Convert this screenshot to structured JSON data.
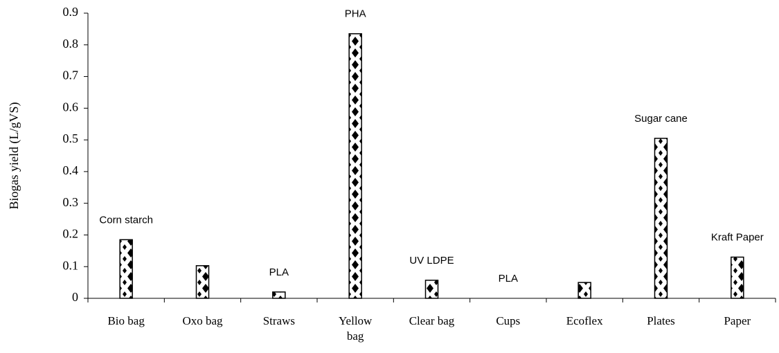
{
  "chart_data": {
    "type": "bar",
    "y_label": "Biogas yield (L/gVS)",
    "categories": [
      "Bio bag",
      "Oxo bag",
      "Straws",
      "Yellow bag",
      "Clear bag",
      "Cups",
      "Ecoflex",
      "Plates",
      "Paper"
    ],
    "values": [
      0.185,
      0.103,
      0.02,
      0.835,
      0.057,
      0,
      0.05,
      0.505,
      0.13
    ],
    "bar_labels": [
      "Corn starch",
      null,
      "PLA",
      "PHA",
      "UV LDPE",
      "PLA",
      null,
      "Sugar cane",
      "Kraft Paper"
    ],
    "color": "#000000",
    "ylim": [
      0,
      0.9
    ],
    "yticks": [
      0,
      0.1,
      0.2,
      0.3,
      0.4,
      0.5,
      0.6,
      0.7,
      0.8,
      0.9
    ],
    "grid": false
  }
}
